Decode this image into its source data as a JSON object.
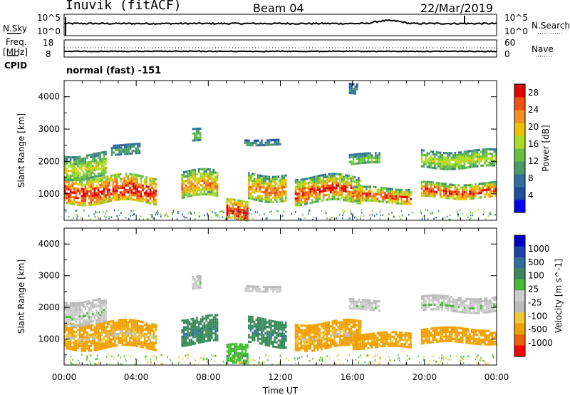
{
  "header": {
    "station": "Inuvik (fitACF)",
    "beam": "Beam 04",
    "date": "22/Mar/2019"
  },
  "side_labels": {
    "nsky": "N.Sky",
    "nsky_ticks": [
      "10^5",
      "10^0"
    ],
    "nsearch": "N.Search",
    "nsearch_ticks": [
      "10^5",
      "10^0"
    ],
    "freq_line1": "Freq.",
    "freq_line2": "[MHz]",
    "freq_ticks": [
      "18",
      "8"
    ],
    "nave": "Nave",
    "nave_ticks": [
      "60",
      "0"
    ],
    "cpid": "CPID",
    "cpid_value": "normal (fast) -151"
  },
  "colors": {
    "power": [
      "#0000ff",
      "#1f4fa0",
      "#2e6f9e",
      "#4a9a6a",
      "#66c040",
      "#aadd22",
      "#f0c000",
      "#f09020",
      "#f05010",
      "#e00000"
    ],
    "velocity": [
      "#ff0000",
      "#f06000",
      "#f0a000",
      "#f0c830",
      "#bbbbbb",
      "#cccccc",
      "#44bb33",
      "#3a8a5a",
      "#2e6fa0",
      "#1f3faa",
      "#0000cc"
    ],
    "noise_line": "#000000"
  },
  "chart_data": [
    {
      "type": "heatmap",
      "title": "Power",
      "ylabel": "Slant Range [km]",
      "xlabel": "",
      "xlim": [
        "00:00",
        "00:00"
      ],
      "ylim": [
        180,
        4500
      ],
      "yticks": [
        "1000",
        "2000",
        "3000",
        "4000"
      ],
      "colorbar_label": "Power [dB]",
      "colorbar_ticks": [
        "4",
        "8",
        "12",
        "16",
        "20",
        "24",
        "28"
      ],
      "colorbar_range": [
        0,
        30
      ],
      "echo_regions": [
        {
          "t0": 0.0,
          "t1": 5.1,
          "r0": 750,
          "r1": 1550,
          "v0": 12,
          "v1": 30
        },
        {
          "t0": 0.0,
          "t1": 2.3,
          "r0": 1500,
          "r1": 2250,
          "v0": 8,
          "v1": 18
        },
        {
          "t0": 2.6,
          "t1": 4.2,
          "r0": 2250,
          "r1": 2550,
          "v0": 6,
          "v1": 12
        },
        {
          "t0": 6.5,
          "t1": 8.5,
          "r0": 900,
          "r1": 1700,
          "v0": 8,
          "v1": 24
        },
        {
          "t0": 7.1,
          "t1": 7.6,
          "r0": 2600,
          "r1": 3000,
          "v0": 6,
          "v1": 14
        },
        {
          "t0": 9.0,
          "t1": 10.2,
          "r0": 180,
          "r1": 800,
          "v0": 14,
          "v1": 30
        },
        {
          "t0": 10.2,
          "t1": 12.3,
          "r0": 850,
          "r1": 1650,
          "v0": 8,
          "v1": 26
        },
        {
          "t0": 10.0,
          "t1": 12.0,
          "r0": 2500,
          "r1": 2700,
          "v0": 4,
          "v1": 12
        },
        {
          "t0": 12.8,
          "t1": 16.5,
          "r0": 750,
          "r1": 1550,
          "v0": 8,
          "v1": 28
        },
        {
          "t0": 15.8,
          "t1": 17.5,
          "r0": 1900,
          "r1": 2250,
          "v0": 6,
          "v1": 16
        },
        {
          "t0": 16.0,
          "t1": 19.2,
          "r0": 750,
          "r1": 1200,
          "v0": 8,
          "v1": 28
        },
        {
          "t0": 19.8,
          "t1": 24.0,
          "r0": 900,
          "r1": 1350,
          "v0": 10,
          "v1": 28
        },
        {
          "t0": 19.8,
          "t1": 24.0,
          "r0": 1850,
          "r1": 2350,
          "v0": 8,
          "v1": 18
        },
        {
          "t0": 15.8,
          "t1": 16.3,
          "r0": 4100,
          "r1": 4450,
          "v0": 4,
          "v1": 10
        }
      ]
    },
    {
      "type": "heatmap",
      "title": "Velocity",
      "ylabel": "Slant Range [km]",
      "xlabel": "Time UT",
      "xlim": [
        "00:00",
        "00:00"
      ],
      "ylim": [
        180,
        4500
      ],
      "yticks": [
        "1000",
        "2000",
        "3000",
        "4000"
      ],
      "xticks": [
        "00:00",
        "04:00",
        "08:00",
        "12:00",
        "16:00",
        "20:00",
        "00:00"
      ],
      "colorbar_label": "Velocity [m s^-1]",
      "colorbar_ticks": [
        "-1000",
        "-500",
        "-100",
        "-25",
        "25",
        "100",
        "500",
        "1000"
      ],
      "echo_regions": [
        {
          "t0": 0.0,
          "t1": 5.1,
          "r0": 750,
          "r1": 1550,
          "v0": -500,
          "v1": -25
        },
        {
          "t0": 0.0,
          "t1": 2.3,
          "r0": 1500,
          "r1": 2250,
          "v0": -25,
          "v1": 25
        },
        {
          "t0": 6.5,
          "t1": 8.5,
          "r0": 900,
          "r1": 1700,
          "v0": 100,
          "v1": 500
        },
        {
          "t0": 7.1,
          "t1": 7.6,
          "r0": 2600,
          "r1": 3000,
          "v0": -25,
          "v1": 25
        },
        {
          "t0": 9.0,
          "t1": 10.2,
          "r0": 180,
          "r1": 800,
          "v0": 25,
          "v1": 100
        },
        {
          "t0": 10.2,
          "t1": 12.3,
          "r0": 850,
          "r1": 1650,
          "v0": 100,
          "v1": 500
        },
        {
          "t0": 10.0,
          "t1": 12.0,
          "r0": 2500,
          "r1": 2700,
          "v0": -25,
          "v1": 25
        },
        {
          "t0": 12.8,
          "t1": 16.5,
          "r0": 750,
          "r1": 1550,
          "v0": -500,
          "v1": -25
        },
        {
          "t0": 16.0,
          "t1": 19.2,
          "r0": 750,
          "r1": 1200,
          "v0": -500,
          "v1": -100
        },
        {
          "t0": 19.8,
          "t1": 24.0,
          "r0": 900,
          "r1": 1350,
          "v0": -500,
          "v1": -100
        },
        {
          "t0": 19.8,
          "t1": 24.0,
          "r0": 1850,
          "r1": 2350,
          "v0": -25,
          "v1": 25
        },
        {
          "t0": 15.8,
          "t1": 17.5,
          "r0": 1900,
          "r1": 2250,
          "v0": -25,
          "v1": 25
        }
      ]
    }
  ]
}
